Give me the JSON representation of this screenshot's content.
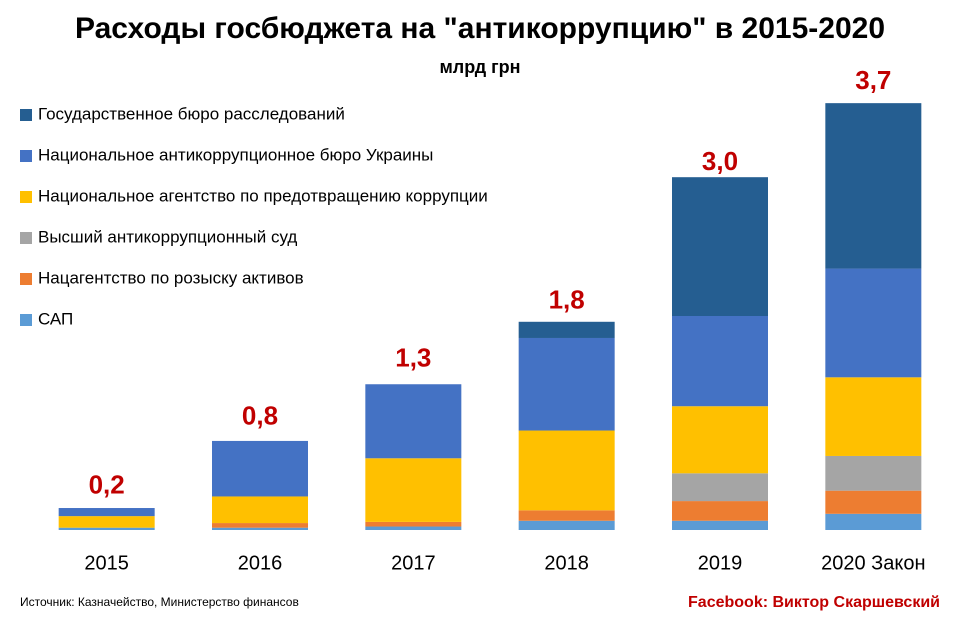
{
  "chart_data": {
    "type": "stacked_bar",
    "title": "Расходы госбюджета на \"антикоррупцию\" в 2015-2020",
    "subtitle": "млрд грн",
    "categories": [
      "2015",
      "2016",
      "2017",
      "2018",
      "2019",
      "2020 Закон"
    ],
    "series": [
      {
        "name": "САП",
        "color": "#5b9bd5",
        "values": [
          0.02,
          0.02,
          0.03,
          0.08,
          0.08,
          0.14
        ]
      },
      {
        "name": "Нацагентство по розыску активов",
        "color": "#ed7d31",
        "values": [
          0,
          0.04,
          0.04,
          0.09,
          0.17,
          0.2
        ]
      },
      {
        "name": "Высший антикоррупционный суд",
        "color": "#a5a5a5",
        "values": [
          0,
          0,
          0,
          0,
          0.24,
          0.3
        ]
      },
      {
        "name": "Национальное агентство по предотвращению коррупции",
        "color": "#ffc000",
        "values": [
          0.1,
          0.23,
          0.55,
          0.69,
          0.58,
          0.68
        ]
      },
      {
        "name": "Национальное антикоррупционное бюро Украины",
        "color": "#4472c4",
        "values": [
          0.07,
          0.48,
          0.64,
          0.8,
          0.78,
          0.94
        ]
      },
      {
        "name": "Государственное бюро расследований",
        "color": "#255e91",
        "values": [
          0,
          0,
          0,
          0.14,
          1.2,
          1.43
        ]
      }
    ],
    "totals": [
      0.2,
      0.8,
      1.3,
      1.8,
      3.0,
      3.7
    ],
    "total_labels": [
      "0,2",
      "0,8",
      "1,3",
      "1,8",
      "3,0",
      "3,7"
    ],
    "source": "Источник: Казначейство, Министерство финансов",
    "credit": "Facebook: Виктор Скаршевский"
  }
}
